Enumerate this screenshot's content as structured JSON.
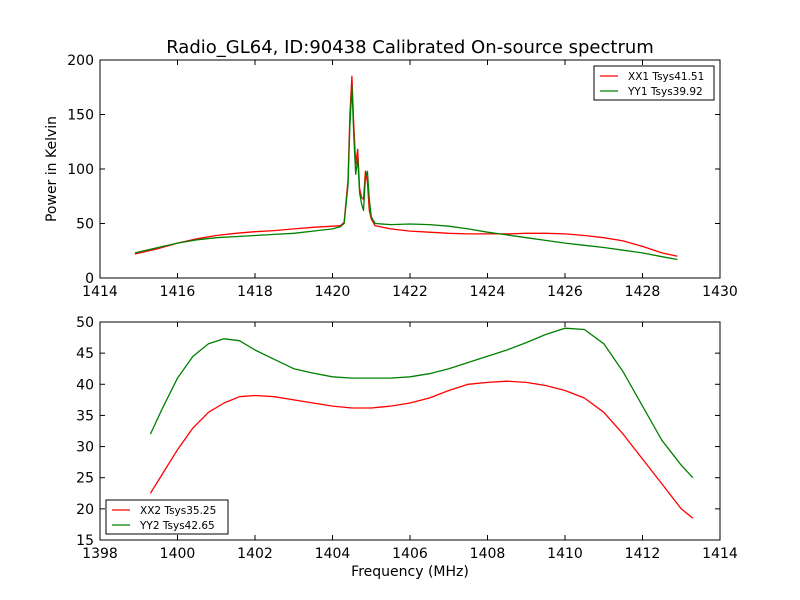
{
  "figure": {
    "title": "Radio_GL64, ID:90438 Calibrated On-source spectrum",
    "xlabel": "Frequency (MHz)"
  },
  "chart_data": [
    {
      "type": "line",
      "title": "Radio_GL64, ID:90438 Calibrated On-source spectrum",
      "xlabel": "",
      "ylabel": "Power in Kelvin",
      "xlim": [
        1414,
        1430
      ],
      "ylim": [
        0,
        200
      ],
      "xticks": [
        "1414",
        "1416",
        "1418",
        "1420",
        "1422",
        "1424",
        "1426",
        "1428",
        "1430"
      ],
      "yticks": [
        "0",
        "50",
        "100",
        "150",
        "200"
      ],
      "legend_position": "top-right",
      "grid": false,
      "series": [
        {
          "name": "XX1 Tsys41.51",
          "color": "#ff0000",
          "x": [
            1414.9,
            1415.5,
            1416.0,
            1416.5,
            1417.0,
            1417.5,
            1418.0,
            1418.5,
            1419.0,
            1419.5,
            1420.0,
            1420.2,
            1420.3,
            1420.4,
            1420.45,
            1420.5,
            1420.55,
            1420.6,
            1420.65,
            1420.7,
            1420.75,
            1420.8,
            1420.85,
            1420.9,
            1420.95,
            1421.0,
            1421.1,
            1421.5,
            1422.0,
            1422.5,
            1423.0,
            1423.5,
            1424.0,
            1424.5,
            1425.0,
            1425.5,
            1426.0,
            1426.5,
            1427.0,
            1427.5,
            1428.0,
            1428.5,
            1428.9
          ],
          "values": [
            22,
            27,
            32,
            36,
            39,
            41,
            42.5,
            43.5,
            45,
            46.5,
            47.5,
            48,
            51,
            90,
            150,
            185,
            140,
            105,
            118,
            82,
            74,
            72,
            98,
            88,
            62,
            54,
            48,
            45,
            43,
            42,
            41,
            40.5,
            40.5,
            40.5,
            41,
            41,
            40.5,
            39,
            37,
            34,
            29,
            23,
            20
          ]
        },
        {
          "name": "YY1 Tsys39.92",
          "color": "#008000",
          "x": [
            1414.9,
            1415.5,
            1416.0,
            1416.5,
            1417.0,
            1417.5,
            1418.0,
            1418.5,
            1419.0,
            1419.5,
            1420.0,
            1420.2,
            1420.3,
            1420.4,
            1420.45,
            1420.5,
            1420.55,
            1420.6,
            1420.65,
            1420.7,
            1420.75,
            1420.8,
            1420.85,
            1420.9,
            1420.95,
            1421.0,
            1421.1,
            1421.5,
            1422.0,
            1422.5,
            1423.0,
            1423.5,
            1424.0,
            1424.5,
            1425.0,
            1425.5,
            1426.0,
            1426.5,
            1427.0,
            1427.5,
            1428.0,
            1428.5,
            1428.9
          ],
          "values": [
            23,
            28,
            32,
            35,
            37,
            38,
            39,
            40,
            41,
            43,
            45,
            47,
            50,
            85,
            140,
            176,
            130,
            95,
            110,
            78,
            68,
            62,
            92,
            98,
            72,
            56,
            50,
            49,
            49.5,
            49,
            47.5,
            45,
            42,
            39.5,
            37,
            34.5,
            32,
            30,
            28,
            25.5,
            23,
            19.5,
            17
          ]
        }
      ]
    },
    {
      "type": "line",
      "title": "",
      "xlabel": "Frequency (MHz)",
      "ylabel": "",
      "xlim": [
        1398,
        1414
      ],
      "ylim": [
        15,
        50
      ],
      "xticks": [
        "1398",
        "1400",
        "1402",
        "1404",
        "1406",
        "1408",
        "1410",
        "1412",
        "1414"
      ],
      "yticks": [
        "15",
        "20",
        "25",
        "30",
        "35",
        "40",
        "45",
        "50"
      ],
      "legend_position": "bottom-left",
      "grid": false,
      "series": [
        {
          "name": "XX2 Tsys35.25",
          "color": "#ff0000",
          "x": [
            1399.3,
            1399.6,
            1400.0,
            1400.4,
            1400.8,
            1401.2,
            1401.6,
            1402.0,
            1402.5,
            1403.0,
            1403.5,
            1404.0,
            1404.5,
            1405.0,
            1405.5,
            1406.0,
            1406.5,
            1407.0,
            1407.5,
            1408.0,
            1408.5,
            1409.0,
            1409.5,
            1410.0,
            1410.5,
            1411.0,
            1411.5,
            1412.0,
            1412.5,
            1413.0,
            1413.3
          ],
          "values": [
            22.5,
            25.5,
            29.5,
            33,
            35.5,
            37,
            38,
            38.2,
            38,
            37.5,
            37,
            36.5,
            36.2,
            36.2,
            36.5,
            37,
            37.8,
            39,
            40,
            40.3,
            40.5,
            40.3,
            39.8,
            39,
            37.8,
            35.5,
            32,
            28,
            24,
            20,
            18.5
          ]
        },
        {
          "name": "YY2 Tsys42.65",
          "color": "#008000",
          "x": [
            1399.3,
            1399.6,
            1400.0,
            1400.4,
            1400.8,
            1401.2,
            1401.6,
            1402.0,
            1402.5,
            1403.0,
            1403.5,
            1404.0,
            1404.5,
            1405.0,
            1405.5,
            1406.0,
            1406.5,
            1407.0,
            1407.5,
            1408.0,
            1408.5,
            1409.0,
            1409.5,
            1410.0,
            1410.5,
            1411.0,
            1411.5,
            1412.0,
            1412.5,
            1413.0,
            1413.3
          ],
          "values": [
            32,
            36,
            41,
            44.5,
            46.5,
            47.3,
            47,
            45.5,
            44,
            42.5,
            41.8,
            41.2,
            41,
            41,
            41,
            41.2,
            41.7,
            42.5,
            43.5,
            44.5,
            45.5,
            46.7,
            48,
            49,
            48.8,
            46.5,
            42,
            36.5,
            31,
            27,
            25
          ]
        }
      ]
    }
  ]
}
